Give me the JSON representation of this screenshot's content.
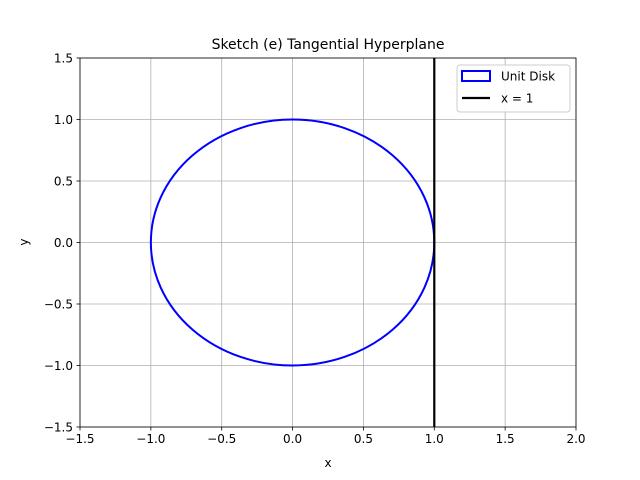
{
  "chart_data": {
    "type": "line",
    "title": "Sketch (e) Tangential Hyperplane",
    "xlabel": "x",
    "ylabel": "y",
    "xlim": [
      -1.5,
      2.0
    ],
    "ylim": [
      -1.5,
      1.5
    ],
    "xticks": [
      -1.5,
      -1.0,
      -0.5,
      0.0,
      0.5,
      1.0,
      1.5,
      2.0
    ],
    "yticks": [
      -1.5,
      -1.0,
      -0.5,
      0.0,
      0.5,
      1.0,
      1.5
    ],
    "xtick_labels": [
      "−1.5",
      "−1.0",
      "−0.5",
      "0.0",
      "0.5",
      "1.0",
      "1.5",
      "2.0"
    ],
    "ytick_labels": [
      "−1.5",
      "−1.0",
      "−0.5",
      "0.0",
      "0.5",
      "1.0",
      "1.5"
    ],
    "grid": true,
    "legend_position": "top-right",
    "series": [
      {
        "name": "Unit Disk",
        "kind": "circle",
        "center": [
          0,
          0
        ],
        "radius": 1,
        "color": "#0000ff"
      },
      {
        "name": "x = 1",
        "kind": "vertical-line",
        "x": 1,
        "color": "#000000"
      }
    ]
  }
}
